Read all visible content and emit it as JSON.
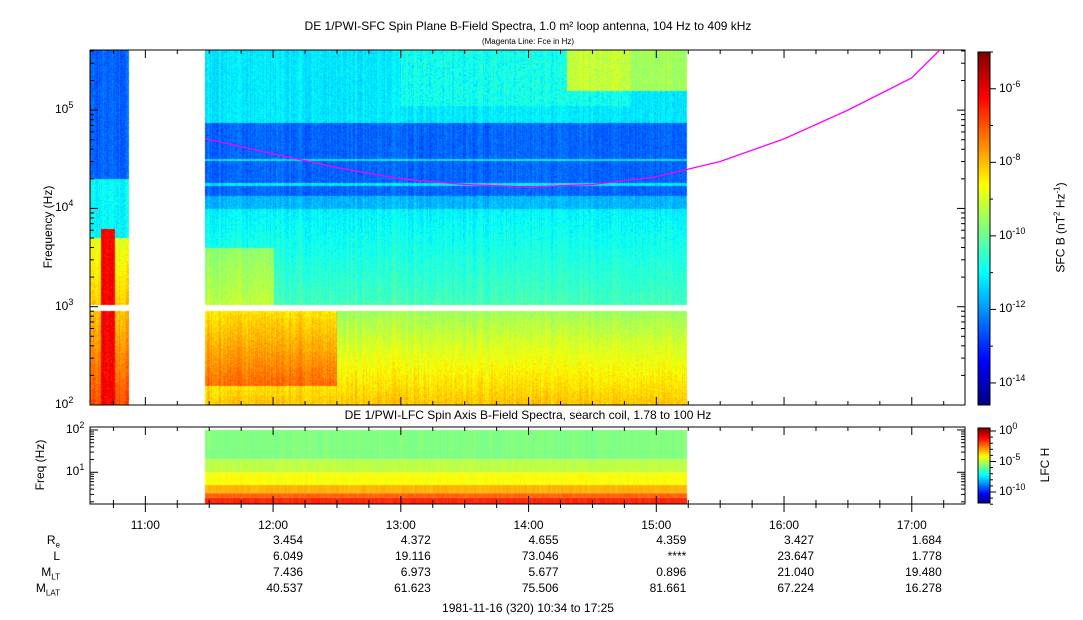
{
  "chart_data": [
    {
      "type": "heatmap",
      "title": "DE 1/PWI-SFC  Spin Plane B-Field Spectra, 1.0 m² loop antenna, 104 Hz to 409 kHz",
      "subtitle": "(Magenta Line: Fce in Hz)",
      "ylabel": "Frequency (Hz)",
      "yscale": "log",
      "ylim": [
        100,
        409000
      ],
      "ytick_labels": [
        "10",
        "10",
        "10",
        "10"
      ],
      "ytick_exps": [
        "2",
        "3",
        "4",
        "5"
      ],
      "xlim": [
        "10:34",
        "17:25"
      ],
      "data_intervals": [
        [
          "10:34",
          "10:52"
        ],
        [
          "11:28",
          "15:14"
        ]
      ],
      "colorbar": {
        "label": "SFC B (nT² Hz⁻¹)",
        "scale": "log",
        "range_exp": [
          -14.6,
          -5
        ],
        "tick_exps": [
          "-6",
          "-8",
          "-10",
          "-12",
          "-14"
        ]
      },
      "fce_line": {
        "name": "Fce in Hz",
        "color": "#ff00ff",
        "time_hours": [
          11.47,
          12.0,
          12.5,
          13.0,
          13.5,
          14.0,
          14.5,
          15.0,
          15.5,
          16.0,
          16.5,
          17.0,
          17.22
        ],
        "freq_hz": [
          51000,
          36000,
          26000,
          20000,
          17500,
          16500,
          17500,
          21000,
          30000,
          51000,
          100000,
          213000,
          409000
        ]
      }
    },
    {
      "type": "heatmap",
      "title": "DE 1/PWI-LFC  Spin Axis B-Field Spectra, search coil, 1.78 to 100 Hz",
      "ylabel": "Freq (Hz)",
      "yscale": "log",
      "ylim": [
        1.78,
        100
      ],
      "ytick_labels": [
        "10",
        "10"
      ],
      "ytick_exps": [
        "2",
        "1"
      ],
      "data_intervals": [
        [
          "11:28",
          "15:14"
        ]
      ],
      "colorbar": {
        "label": "LFC H",
        "scale": "log",
        "range_exp": [
          -12,
          0
        ],
        "tick_exps": [
          "0",
          "-5",
          "-10"
        ]
      }
    }
  ],
  "xaxis": {
    "tick_labels": [
      "11:00",
      "12:00",
      "13:00",
      "14:00",
      "15:00",
      "16:00",
      "17:00"
    ],
    "tick_hours": [
      11,
      12,
      13,
      14,
      15,
      16,
      17
    ]
  },
  "ephemeris": {
    "rows": [
      {
        "label": "R",
        "sub": "e",
        "values": [
          "3.454",
          "4.372",
          "4.655",
          "4.359",
          "3.427",
          "1.684"
        ]
      },
      {
        "label": "L",
        "sub": "",
        "values": [
          "6.049",
          "19.116",
          "73.046",
          "****",
          "23.647",
          "1.778"
        ]
      },
      {
        "label": "M",
        "sub": "LT",
        "values": [
          "7.436",
          "6.973",
          "5.677",
          "0.896",
          "21.040",
          "19.480"
        ]
      },
      {
        "label": "M",
        "sub": "LAT",
        "values": [
          "40.537",
          "61.623",
          "75.506",
          "81.661",
          "67.224",
          "16.278"
        ]
      }
    ]
  },
  "footer": "1981-11-16 (320) 10:34 to 17:25"
}
